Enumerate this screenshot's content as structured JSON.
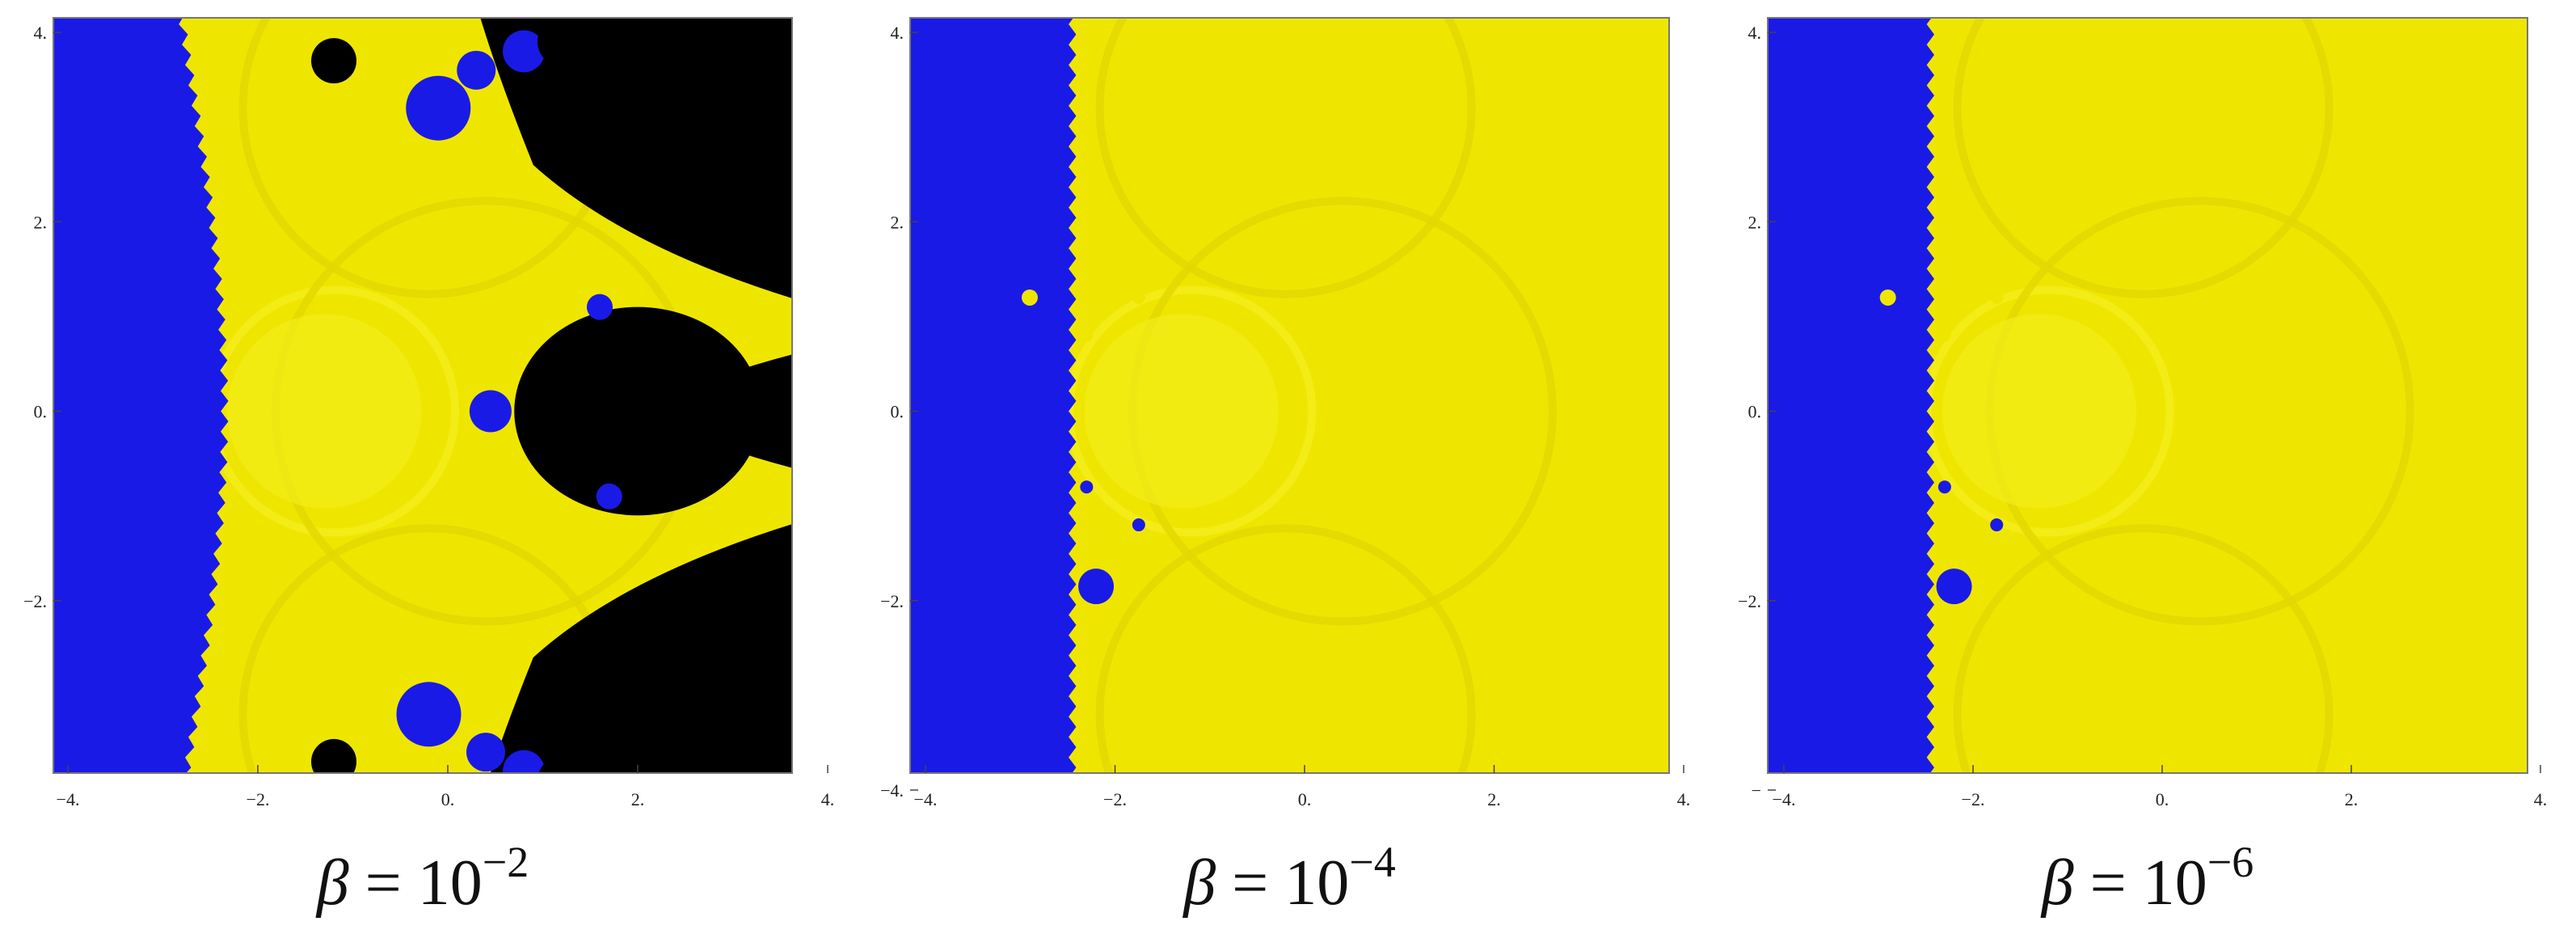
{
  "colors": {
    "blue": "#1a1ae6",
    "yellow": "#efe600",
    "yellow_shade": "#e2d800",
    "yellow_light": "#f4ee1c",
    "black": "#000000",
    "frame": "#777777"
  },
  "chart_data": [
    {
      "type": "heatmap",
      "title": "",
      "xlabel": "",
      "ylabel": "",
      "caption": {
        "symbol": "β",
        "equals": "=",
        "base": "10",
        "exponent": "−2"
      },
      "xlim": [
        -4,
        4
      ],
      "ylim": [
        -4,
        4
      ],
      "x_ticks": [
        {
          "value": -4,
          "label": "−4."
        },
        {
          "value": -2,
          "label": "−2."
        },
        {
          "value": 0,
          "label": "0."
        },
        {
          "value": 2,
          "label": "2."
        },
        {
          "value": 4,
          "label": "4."
        }
      ],
      "y_ticks": [
        {
          "value": 4,
          "label": "4."
        },
        {
          "value": 2,
          "label": "2."
        },
        {
          "value": 0,
          "label": "0."
        },
        {
          "value": -2,
          "label": "−2."
        }
      ],
      "categories": [
        "blue",
        "yellow",
        "black"
      ],
      "boundary": {
        "blue_yellow_x": -2.5,
        "black_region": "right side beyond a cusp-shaped boundary; large black bulb centred near x = 2.0, y = 0",
        "black_bulb": {
          "center": [
            2.0,
            0.0
          ],
          "rx": 1.3,
          "ry": 1.1
        },
        "yellow_tendrils_to": [
          4.0,
          0.8
        ]
      }
    },
    {
      "type": "heatmap",
      "title": "",
      "xlabel": "",
      "ylabel": "",
      "caption": {
        "symbol": "β",
        "equals": "=",
        "base": "10",
        "exponent": "−4"
      },
      "xlim": [
        -4,
        4
      ],
      "ylim": [
        -4,
        4
      ],
      "x_ticks": [
        {
          "value": -4,
          "label": "−4."
        },
        {
          "value": -2,
          "label": "−2."
        },
        {
          "value": 0,
          "label": "0."
        },
        {
          "value": 2,
          "label": "2."
        },
        {
          "value": 4,
          "label": "4."
        }
      ],
      "y_ticks": [
        {
          "value": 4,
          "label": "4."
        },
        {
          "value": 2,
          "label": "2."
        },
        {
          "value": 0,
          "label": "0."
        },
        {
          "value": -2,
          "label": "−2."
        },
        {
          "value": -4,
          "label": "−4."
        }
      ],
      "categories": [
        "blue",
        "yellow"
      ],
      "boundary": {
        "blue_yellow_x": -2.45
      }
    },
    {
      "type": "heatmap",
      "title": "",
      "xlabel": "",
      "ylabel": "",
      "caption": {
        "symbol": "β",
        "equals": "=",
        "base": "10",
        "exponent": "−6"
      },
      "xlim": [
        -4,
        4
      ],
      "ylim": [
        -4,
        4
      ],
      "x_ticks": [
        {
          "value": -4,
          "label": "−4."
        },
        {
          "value": -2,
          "label": "−2."
        },
        {
          "value": 0,
          "label": "0."
        },
        {
          "value": 2,
          "label": "2."
        },
        {
          "value": 4,
          "label": "4."
        }
      ],
      "y_ticks": [
        {
          "value": 4,
          "label": "4."
        },
        {
          "value": 2,
          "label": "2."
        },
        {
          "value": 0,
          "label": "0."
        },
        {
          "value": -2,
          "label": "−2."
        },
        {
          "value": -4,
          "label": "−"
        }
      ],
      "categories": [
        "blue",
        "yellow"
      ],
      "boundary": {
        "blue_yellow_x": -2.45
      }
    }
  ]
}
